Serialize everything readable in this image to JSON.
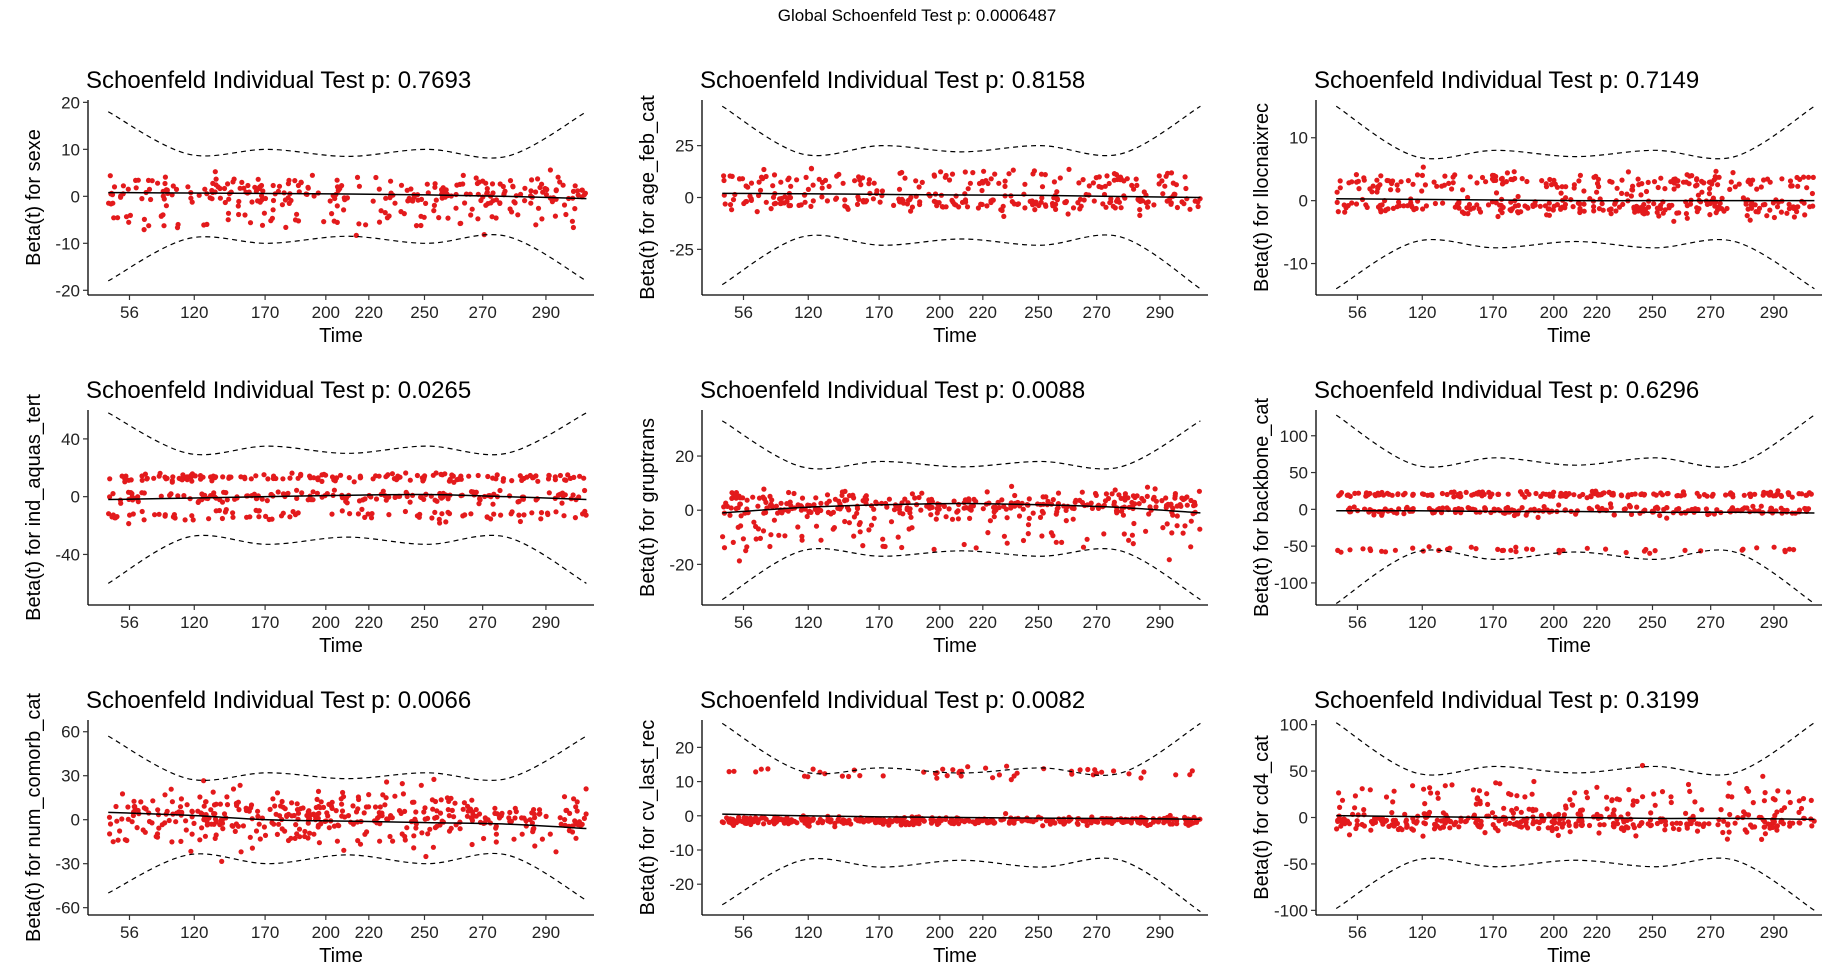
{
  "global_title": "Global Schoenfeld Test p: 0.0006487",
  "chart_data": [
    {
      "type": "scatter",
      "title": "Schoenfeld Individual Test p: 0.7693",
      "ylabel": "Beta(t) for sexe",
      "xlabel": "Time",
      "xticks": [
        56,
        120,
        170,
        200,
        220,
        250,
        270,
        290
      ],
      "yticks": [
        -20,
        -10,
        0,
        10,
        20
      ],
      "ylim": [
        -21,
        20.5
      ],
      "clusters": [
        {
          "center": 1,
          "spread": 1.6,
          "n": 250
        },
        {
          "center": -5,
          "spread": 1.3,
          "n": 70
        }
      ],
      "fit": [
        0.8,
        0.7,
        0.6,
        0.5,
        0.3,
        0,
        -0.5
      ],
      "band_upper": [
        18,
        9,
        10,
        8.5,
        10,
        8.5,
        18
      ],
      "band_lower": [
        -18,
        -9,
        -10,
        -8.5,
        -10,
        -8.5,
        -18
      ]
    },
    {
      "type": "scatter",
      "title": "Schoenfeld Individual Test p: 0.8158",
      "ylabel": "Beta(t) for age_feb_cat",
      "xlabel": "Time",
      "xticks": [
        56,
        120,
        170,
        200,
        220,
        250,
        270,
        290
      ],
      "yticks": [
        -25,
        0,
        25
      ],
      "ylim": [
        -47,
        47
      ],
      "clusters": [
        {
          "center": 8,
          "spread": 2.5,
          "n": 120
        },
        {
          "center": -2,
          "spread": 2.5,
          "n": 200
        }
      ],
      "fit": [
        2,
        1.8,
        1.5,
        1.2,
        1,
        0.5,
        0
      ],
      "band_upper": [
        44,
        21,
        25,
        22,
        25,
        21,
        44
      ],
      "band_lower": [
        -42,
        -19,
        -23,
        -20,
        -23,
        -19,
        -44
      ]
    },
    {
      "type": "scatter",
      "title": "Schoenfeld Individual Test p: 0.7149",
      "ylabel": "Beta(t) for llocnaixrec",
      "xlabel": "Time",
      "xticks": [
        56,
        120,
        170,
        200,
        220,
        250,
        270,
        290
      ],
      "yticks": [
        -10,
        0,
        10
      ],
      "ylim": [
        -15,
        16
      ],
      "clusters": [
        {
          "center": 2.8,
          "spread": 0.8,
          "n": 170
        },
        {
          "center": -1,
          "spread": 0.8,
          "n": 230
        }
      ],
      "fit": [
        0.3,
        0.2,
        0.1,
        0,
        0,
        0,
        0
      ],
      "band_upper": [
        15,
        7,
        8,
        7,
        8,
        7,
        15
      ],
      "band_lower": [
        -14,
        -6.5,
        -7.5,
        -6.5,
        -7.5,
        -6.5,
        -14
      ]
    },
    {
      "type": "scatter",
      "title": "Schoenfeld Individual Test p: 0.0265",
      "ylabel": "Beta(t) for ind_aquas_tert",
      "xlabel": "Time",
      "xticks": [
        56,
        120,
        170,
        200,
        220,
        250,
        270,
        290
      ],
      "yticks": [
        -40,
        0,
        40
      ],
      "ylim": [
        -75,
        60
      ],
      "clusters": [
        {
          "center": 13,
          "spread": 1.5,
          "n": 150
        },
        {
          "center": 0,
          "spread": 2,
          "n": 160
        },
        {
          "center": -13,
          "spread": 2,
          "n": 90
        }
      ],
      "fit": [
        -2,
        -1,
        0,
        1,
        1.5,
        0,
        -2
      ],
      "band_upper": [
        58,
        30,
        35,
        30,
        35,
        30,
        58
      ],
      "band_lower": [
        -60,
        -28,
        -33,
        -28,
        -33,
        -28,
        -60
      ]
    },
    {
      "type": "scatter",
      "title": "Schoenfeld Individual Test p: 0.0088",
      "ylabel": "Beta(t) for gruptrans",
      "xlabel": "Time",
      "xticks": [
        56,
        120,
        170,
        200,
        220,
        250,
        270,
        290
      ],
      "yticks": [
        -20,
        0,
        20
      ],
      "ylim": [
        -35,
        37
      ],
      "clusters": [
        {
          "center": 2,
          "spread": 2.5,
          "n": 320
        },
        {
          "center": -9,
          "spread": 4,
          "n": 80
        }
      ],
      "fit": [
        -1,
        1,
        2,
        2.5,
        2,
        1,
        -1
      ],
      "band_upper": [
        33,
        16,
        18,
        16,
        18,
        16,
        33
      ],
      "band_lower": [
        -33,
        -15,
        -17,
        -15,
        -17,
        -15,
        -33
      ]
    },
    {
      "type": "scatter",
      "title": "Schoenfeld Individual Test p: 0.6296",
      "ylabel": "Beta(t) for backbone_cat",
      "xlabel": "Time",
      "xticks": [
        56,
        120,
        170,
        200,
        220,
        250,
        270,
        290
      ],
      "yticks": [
        -100,
        -50,
        0,
        50,
        100
      ],
      "ylim": [
        -130,
        135
      ],
      "clusters": [
        {
          "center": 20,
          "spread": 2,
          "n": 170
        },
        {
          "center": -2,
          "spread": 3,
          "n": 190
        },
        {
          "center": -55,
          "spread": 2,
          "n": 45
        }
      ],
      "fit": [
        -2,
        -2,
        -3,
        -3,
        -4,
        -4,
        -5
      ],
      "band_upper": [
        128,
        60,
        70,
        60,
        70,
        60,
        128
      ],
      "band_lower": [
        -128,
        -58,
        -68,
        -58,
        -68,
        -58,
        -128
      ]
    },
    {
      "type": "scatter",
      "title": "Schoenfeld Individual Test p: 0.0066",
      "ylabel": "Beta(t) for num_comorb_cat",
      "xlabel": "Time",
      "xticks": [
        56,
        120,
        170,
        200,
        220,
        250,
        270,
        290
      ],
      "yticks": [
        -60,
        -30,
        0,
        30,
        60
      ],
      "ylim": [
        -65,
        68
      ],
      "clusters": [
        {
          "center": 2,
          "spread": 9,
          "n": 420
        }
      ],
      "fit": [
        5,
        3,
        0,
        -1,
        -2,
        -3,
        -6
      ],
      "band_upper": [
        57,
        28,
        32,
        28,
        32,
        28,
        57
      ],
      "band_lower": [
        -50,
        -24,
        -30,
        -24,
        -30,
        -24,
        -55
      ]
    },
    {
      "type": "scatter",
      "title": "Schoenfeld Individual Test p: 0.0082",
      "ylabel": "Beta(t) for cv_last_rec",
      "xlabel": "Time",
      "xticks": [
        56,
        120,
        170,
        200,
        220,
        250,
        270,
        290
      ],
      "yticks": [
        -20,
        -10,
        0,
        10,
        20
      ],
      "ylim": [
        -29,
        28
      ],
      "clusters": [
        {
          "center": -1.5,
          "spread": 0.6,
          "n": 380
        },
        {
          "center": 12.5,
          "spread": 0.8,
          "n": 50
        }
      ],
      "fit": [
        0.5,
        0,
        -0.3,
        -0.5,
        -0.7,
        -0.8,
        -1
      ],
      "band_upper": [
        27,
        13,
        14,
        12.5,
        14,
        12.5,
        27
      ],
      "band_lower": [
        -26,
        -13,
        -15,
        -13,
        -15,
        -13,
        -28
      ]
    },
    {
      "type": "scatter",
      "title": "Schoenfeld Individual Test p: 0.3199",
      "ylabel": "Beta(t) for cd4_cat",
      "xlabel": "Time",
      "xticks": [
        56,
        120,
        170,
        200,
        220,
        250,
        270,
        290
      ],
      "yticks": [
        -100,
        -50,
        0,
        50,
        100
      ],
      "ylim": [
        -105,
        105
      ],
      "clusters": [
        {
          "center": -5,
          "spread": 6,
          "n": 320
        },
        {
          "center": 22,
          "spread": 9,
          "n": 90
        }
      ],
      "fit": [
        2,
        1,
        0,
        0,
        -1,
        -1,
        -2
      ],
      "band_upper": [
        102,
        48,
        55,
        48,
        55,
        48,
        102
      ],
      "band_lower": [
        -98,
        -46,
        -53,
        -46,
        -53,
        -46,
        -100
      ]
    }
  ]
}
